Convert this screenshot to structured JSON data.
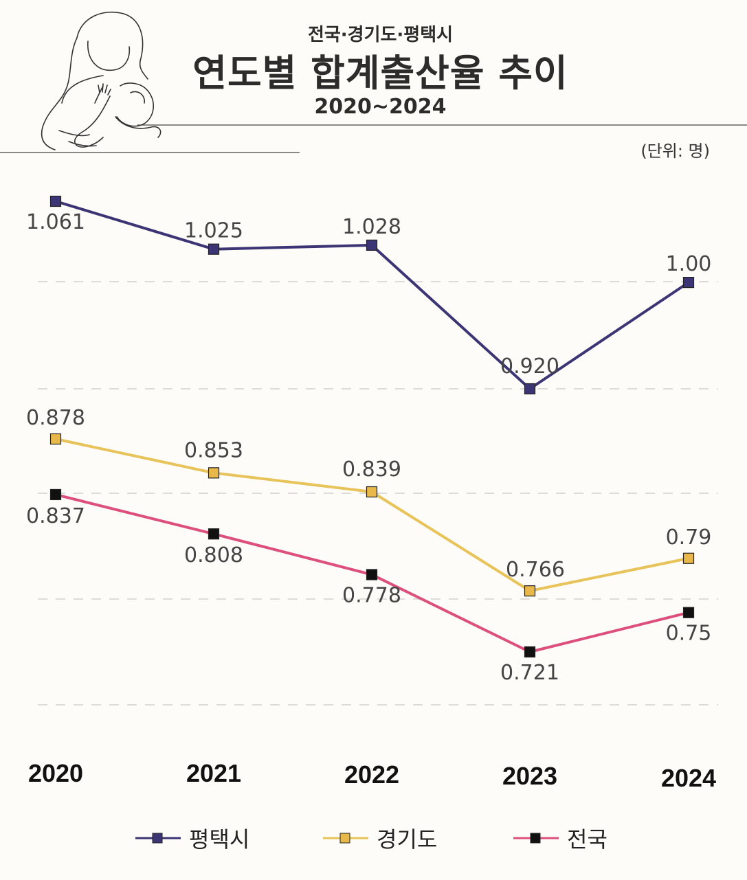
{
  "header": {
    "subtitle": "전국·경기도·평택시",
    "title": "연도별 합계출산율 추이",
    "period": "2020~2024",
    "unit": "(단위: 명)"
  },
  "chart_data": {
    "type": "line",
    "title": "연도별 합계출산율 추이",
    "categories": [
      "2020",
      "2021",
      "2022",
      "2023",
      "2024"
    ],
    "series": [
      {
        "name": "평택시",
        "values": [
          1.061,
          1.025,
          1.028,
          0.92,
          1.0
        ],
        "labels": [
          "1.061",
          "1.025",
          "1.028",
          "0.920",
          "1.00"
        ],
        "line_color": "#3c3575",
        "marker_color": "#3c3575"
      },
      {
        "name": "경기도",
        "values": [
          0.878,
          0.853,
          0.839,
          0.766,
          0.79
        ],
        "labels": [
          "0.878",
          "0.853",
          "0.839",
          "0.766",
          "0.79"
        ],
        "line_color": "#e8c35a",
        "marker_color": "#e8b84a"
      },
      {
        "name": "전국",
        "values": [
          0.837,
          0.808,
          0.778,
          0.721,
          0.75
        ],
        "labels": [
          "0.837",
          "0.808",
          "0.778",
          "0.721",
          "0.75"
        ],
        "line_color": "#dd4f7d",
        "marker_color": "#111111"
      }
    ],
    "grid": "dashed horizontal",
    "legend_position": "bottom"
  }
}
